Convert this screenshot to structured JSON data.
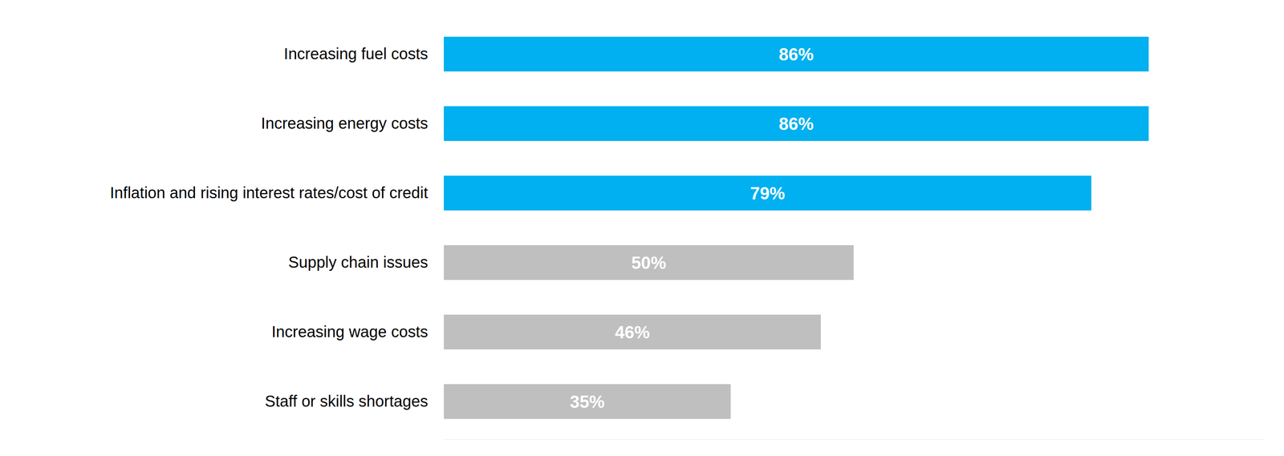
{
  "chart_data": {
    "type": "bar",
    "orientation": "horizontal",
    "categories": [
      "Increasing fuel costs",
      "Increasing energy costs",
      "Inflation and rising interest rates/cost of credit",
      "Supply chain issues",
      "Increasing wage costs",
      "Staff or skills shortages"
    ],
    "values": [
      86,
      86,
      79,
      50,
      46,
      35
    ],
    "value_labels": [
      "86%",
      "86%",
      "79%",
      "50%",
      "46%",
      "35%"
    ],
    "colors": [
      "#00b0f0",
      "#00b0f0",
      "#00b0f0",
      "#bfbfbf",
      "#bfbfbf",
      "#bfbfbf"
    ],
    "xlim": [
      0,
      100
    ],
    "xticks": [],
    "grid": false,
    "data_labels": true,
    "tick_labels": "y"
  }
}
